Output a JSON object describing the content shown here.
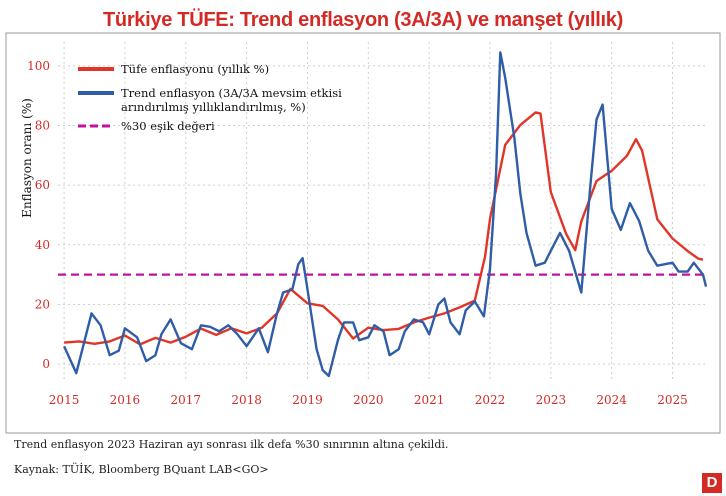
{
  "colors": {
    "headline": "#d42a25",
    "headline_series": "#e03628",
    "trend_series": "#2f5da7",
    "threshold": "#c0139d",
    "grid": "#cfcfcf",
    "logo_bg": "#d42a25"
  },
  "logo_text": "D",
  "footnote": "Trend enflasyon 2023 Haziran ayı sonrası ilk defa %30 sınırının altına çekildi.",
  "source": "Kaynak: TÜİK, Bloomberg BQuant LAB<GO>",
  "chart_data": {
    "type": "line",
    "title": "Türkiye TÜFE: Trend enflasyon (3A/3A) ve manşet (yıllık)",
    "ylabel": "Enflasyon oranı (%)",
    "xlabel": "",
    "ylim": [
      -6,
      108
    ],
    "xlim": [
      2014.9,
      2025.55
    ],
    "yticks": [
      0,
      20,
      40,
      60,
      80,
      100
    ],
    "xticks": [
      2015,
      2016,
      2017,
      2018,
      2019,
      2020,
      2021,
      2022,
      2023,
      2024,
      2025
    ],
    "grid": true,
    "legend_position": "top-left",
    "series": [
      {
        "name": "Tüfe enflasyonu (yıllık %)",
        "color": "#e03628",
        "points": [
          [
            2015.0,
            7.2
          ],
          [
            2015.25,
            7.6
          ],
          [
            2015.5,
            6.8
          ],
          [
            2015.75,
            7.6
          ],
          [
            2016.0,
            9.6
          ],
          [
            2016.25,
            6.6
          ],
          [
            2016.5,
            8.8
          ],
          [
            2016.75,
            7.2
          ],
          [
            2017.0,
            9.2
          ],
          [
            2017.25,
            11.9
          ],
          [
            2017.5,
            9.8
          ],
          [
            2017.75,
            12.0
          ],
          [
            2018.0,
            10.3
          ],
          [
            2018.25,
            12.2
          ],
          [
            2018.5,
            17.0
          ],
          [
            2018.72,
            25.2
          ],
          [
            2019.0,
            20.4
          ],
          [
            2019.25,
            19.5
          ],
          [
            2019.5,
            15.0
          ],
          [
            2019.75,
            8.6
          ],
          [
            2020.0,
            12.2
          ],
          [
            2020.25,
            11.4
          ],
          [
            2020.5,
            11.8
          ],
          [
            2020.75,
            14.0
          ],
          [
            2021.0,
            15.6
          ],
          [
            2021.25,
            17.0
          ],
          [
            2021.5,
            19.0
          ],
          [
            2021.75,
            21.3
          ],
          [
            2021.92,
            36.1
          ],
          [
            2022.0,
            48.7
          ],
          [
            2022.25,
            73.5
          ],
          [
            2022.5,
            80.2
          ],
          [
            2022.75,
            84.4
          ],
          [
            2022.83,
            84.0
          ],
          [
            2023.0,
            57.7
          ],
          [
            2023.25,
            43.7
          ],
          [
            2023.4,
            38.2
          ],
          [
            2023.5,
            47.8
          ],
          [
            2023.75,
            61.4
          ],
          [
            2024.0,
            64.8
          ],
          [
            2024.25,
            69.8
          ],
          [
            2024.4,
            75.4
          ],
          [
            2024.5,
            71.6
          ],
          [
            2024.75,
            48.6
          ],
          [
            2025.0,
            42.1
          ],
          [
            2025.25,
            37.9
          ],
          [
            2025.42,
            35.4
          ],
          [
            2025.5,
            35.0
          ]
        ]
      },
      {
        "name": "Trend enflasyon (3A/3A mevsim etkisi arındırılmış yıllıklandırılmış, %)",
        "color": "#2f5da7",
        "points": [
          [
            2015.0,
            6.0
          ],
          [
            2015.2,
            -3.0
          ],
          [
            2015.45,
            17.0
          ],
          [
            2015.6,
            13.0
          ],
          [
            2015.75,
            3.0
          ],
          [
            2015.9,
            4.5
          ],
          [
            2016.0,
            12.0
          ],
          [
            2016.2,
            9.0
          ],
          [
            2016.35,
            1.0
          ],
          [
            2016.5,
            3.0
          ],
          [
            2016.6,
            10.0
          ],
          [
            2016.75,
            15.0
          ],
          [
            2016.92,
            7.0
          ],
          [
            2017.1,
            5.0
          ],
          [
            2017.25,
            13.0
          ],
          [
            2017.4,
            12.5
          ],
          [
            2017.55,
            11.0
          ],
          [
            2017.7,
            13.0
          ],
          [
            2017.85,
            10.0
          ],
          [
            2018.0,
            6.0
          ],
          [
            2018.2,
            12.0
          ],
          [
            2018.35,
            4.0
          ],
          [
            2018.5,
            17.0
          ],
          [
            2018.6,
            24.0
          ],
          [
            2018.75,
            25.0
          ],
          [
            2018.85,
            33.5
          ],
          [
            2018.92,
            35.5
          ],
          [
            2019.0,
            25.0
          ],
          [
            2019.15,
            5.0
          ],
          [
            2019.25,
            -2.0
          ],
          [
            2019.35,
            -4.0
          ],
          [
            2019.5,
            8.0
          ],
          [
            2019.6,
            14.0
          ],
          [
            2019.75,
            14.0
          ],
          [
            2019.85,
            8.0
          ],
          [
            2020.0,
            9.0
          ],
          [
            2020.1,
            13.0
          ],
          [
            2020.25,
            11.0
          ],
          [
            2020.35,
            3.0
          ],
          [
            2020.5,
            5.0
          ],
          [
            2020.6,
            11.0
          ],
          [
            2020.75,
            15.0
          ],
          [
            2020.9,
            14.0
          ],
          [
            2021.0,
            10.0
          ],
          [
            2021.15,
            20.0
          ],
          [
            2021.25,
            22.0
          ],
          [
            2021.35,
            14.0
          ],
          [
            2021.5,
            10.0
          ],
          [
            2021.6,
            18.0
          ],
          [
            2021.75,
            21.0
          ],
          [
            2021.9,
            16.0
          ],
          [
            2022.0,
            32.0
          ],
          [
            2022.1,
            64.0
          ],
          [
            2022.17,
            104.5
          ],
          [
            2022.25,
            96.0
          ],
          [
            2022.4,
            76.0
          ],
          [
            2022.5,
            57.0
          ],
          [
            2022.6,
            44.0
          ],
          [
            2022.75,
            33.0
          ],
          [
            2022.9,
            34.0
          ],
          [
            2023.0,
            38.0
          ],
          [
            2023.15,
            44.0
          ],
          [
            2023.3,
            38.0
          ],
          [
            2023.5,
            24.0
          ],
          [
            2023.65,
            60.0
          ],
          [
            2023.75,
            82.0
          ],
          [
            2023.85,
            87.0
          ],
          [
            2024.0,
            52.0
          ],
          [
            2024.15,
            45.0
          ],
          [
            2024.3,
            54.0
          ],
          [
            2024.45,
            48.0
          ],
          [
            2024.6,
            38.0
          ],
          [
            2024.75,
            33.0
          ],
          [
            2025.0,
            34.0
          ],
          [
            2025.1,
            31.0
          ],
          [
            2025.25,
            31.0
          ],
          [
            2025.35,
            34.0
          ],
          [
            2025.5,
            30.0
          ],
          [
            2025.55,
            26.0
          ]
        ]
      },
      {
        "name": "%30 eşik değeri",
        "color": "#c0139d",
        "dashed": true,
        "points": [
          [
            2014.9,
            30
          ],
          [
            2025.55,
            30
          ]
        ]
      }
    ]
  }
}
